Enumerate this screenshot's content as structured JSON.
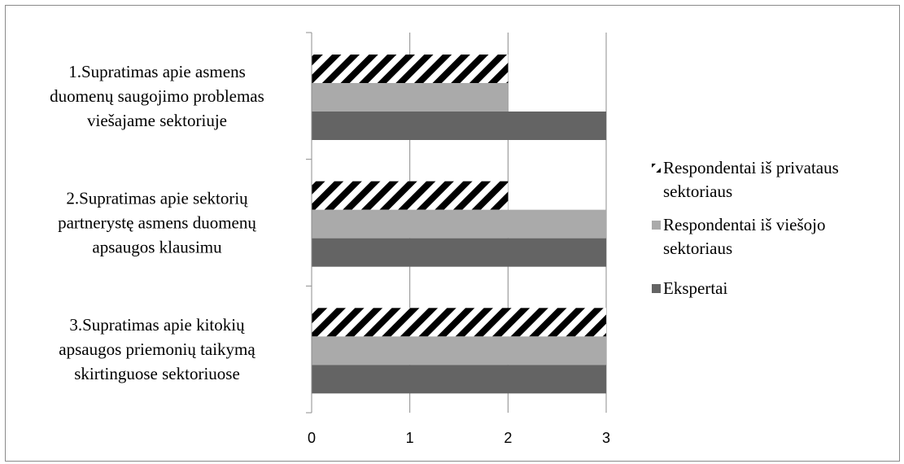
{
  "chart_data": {
    "type": "bar",
    "orientation": "horizontal",
    "categories": [
      [
        "1.Supratimas apie asmens",
        "duomenų saugojimo problemas",
        "viešajame sektoriuje"
      ],
      [
        "2.Supratimas apie sektorių",
        "partnerystę asmens duomenų",
        "apsaugos klausimu"
      ],
      [
        "3.Supratimas apie kitokių",
        "apsaugos priemonių taikymą",
        "skirtinguose sektoriuose"
      ]
    ],
    "series": [
      {
        "name": [
          "Respondentai iš privataus",
          "sektoriaus"
        ],
        "values": [
          2,
          2,
          3
        ],
        "color": "#000000",
        "pattern": "diagonal-stripes"
      },
      {
        "name": [
          "Respondentai iš viešojo",
          "sektoriaus"
        ],
        "values": [
          2,
          3,
          3
        ],
        "color": "#aaaaaa",
        "pattern": "solid"
      },
      {
        "name": [
          "Ekspertai"
        ],
        "values": [
          3,
          3,
          3
        ],
        "color": "#646464",
        "pattern": "solid"
      }
    ],
    "xlim": [
      0,
      3
    ],
    "xticks": [
      "0",
      "1",
      "2",
      "3"
    ],
    "grid": true,
    "legend_position": "right"
  }
}
